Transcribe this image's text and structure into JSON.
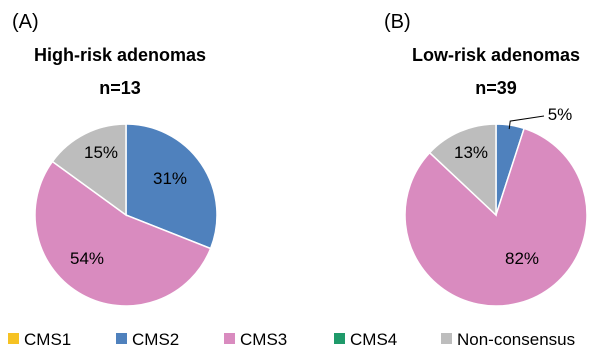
{
  "chart_data": [
    {
      "type": "pie",
      "panel": "(A)",
      "title": "High-risk adenomas",
      "subtitle": "n=13",
      "slices": [
        {
          "category": "CMS1",
          "value": 0,
          "label": ""
        },
        {
          "category": "CMS2",
          "value": 31,
          "label": "31%"
        },
        {
          "category": "CMS3",
          "value": 54,
          "label": "54%"
        },
        {
          "category": "CMS4",
          "value": 0,
          "label": ""
        },
        {
          "category": "Non-consensus",
          "value": 15,
          "label": "15%"
        }
      ]
    },
    {
      "type": "pie",
      "panel": "(B)",
      "title": "Low-risk adenomas",
      "subtitle": "n=39",
      "slices": [
        {
          "category": "CMS1",
          "value": 0,
          "label": ""
        },
        {
          "category": "CMS2",
          "value": 5,
          "label": "5%"
        },
        {
          "category": "CMS3",
          "value": 82,
          "label": "82%"
        },
        {
          "category": "CMS4",
          "value": 0,
          "label": ""
        },
        {
          "category": "Non-consensus",
          "value": 13,
          "label": "13%"
        }
      ]
    }
  ],
  "legend": [
    {
      "name": "CMS1",
      "color": "#f6c223"
    },
    {
      "name": "CMS2",
      "color": "#4f81bd"
    },
    {
      "name": "CMS3",
      "color": "#d98bbf"
    },
    {
      "name": "CMS4",
      "color": "#1f9a6a"
    },
    {
      "name": "Non-consensus",
      "color": "#bdbdbd"
    }
  ]
}
